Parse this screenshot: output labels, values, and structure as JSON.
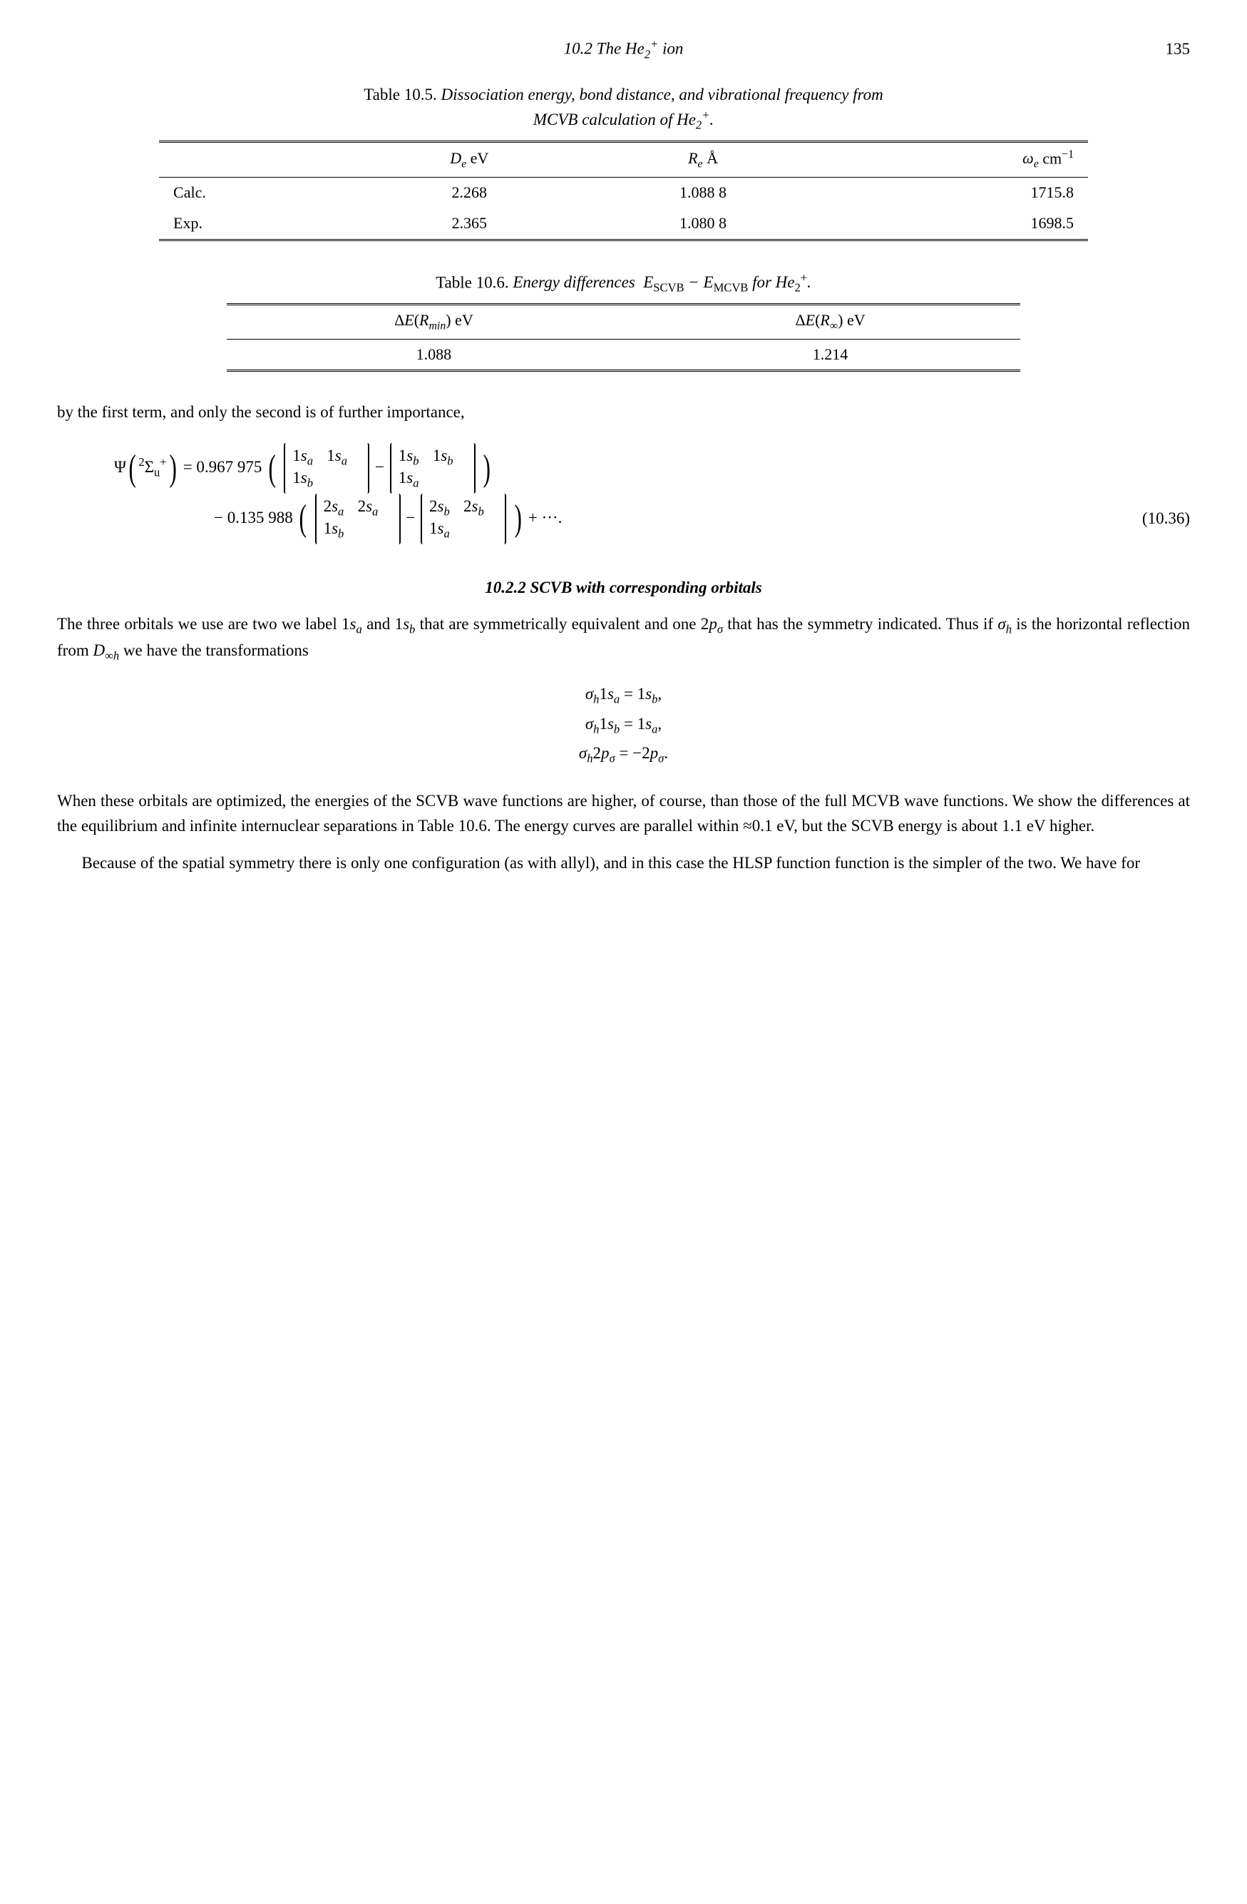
{
  "header": {
    "running_title": "10.2 The He₂⁺ ion",
    "page_number": "135"
  },
  "table1": {
    "caption_label": "Table 10.5.",
    "caption_desc": "Dissociation energy, bond distance, and vibrational frequency from MCVB calculation of He₂⁺.",
    "headers": [
      "",
      "Dₑ eV",
      "Rₑ Å",
      "ωₑ cm⁻¹"
    ],
    "rows": [
      [
        "Calc.",
        "2.268",
        "1.088 8",
        "1715.8"
      ],
      [
        "Exp.",
        "2.365",
        "1.080 8",
        "1698.5"
      ]
    ]
  },
  "table2": {
    "caption_label": "Table 10.6.",
    "caption_desc_pre": "Energy differences ",
    "caption_desc_mid": "E",
    "caption_desc_sub1": "SCVB",
    "caption_desc_minus": " − ",
    "caption_desc_mid2": "E",
    "caption_desc_sub2": "MCVB",
    "caption_desc_post": " for He₂⁺.",
    "headers": [
      "ΔE(Rₘᵢₙ) eV",
      "ΔE(R∞) eV"
    ],
    "rows": [
      [
        "1.088",
        "1.214"
      ]
    ]
  },
  "para1": "by the first term, and only the second is of further importance,",
  "equation": {
    "lhs": "Ψ(²Σᵤ⁺) = 0.967 975 ",
    "m1": {
      "r1c1": "1sₐ",
      "r1c2": "1sₐ",
      "r2c1": "1s_b",
      "r2c2": ""
    },
    "m2": {
      "r1c1": "1s_b",
      "r1c2": "1s_b",
      "r2c1": "1sₐ",
      "r2c2": ""
    },
    "line2_pre": "− 0.135 988 ",
    "m3": {
      "r1c1": "2sₐ",
      "r1c2": "2sₐ",
      "r2c1": "1s_b",
      "r2c2": ""
    },
    "m4": {
      "r1c1": "2s_b",
      "r1c2": "2s_b",
      "r2c1": "1sₐ",
      "r2c2": ""
    },
    "trail": " + ···.",
    "number": "(10.36)"
  },
  "subsection": "10.2.2  SCVB with corresponding orbitals",
  "para2_a": "The three orbitals we use are two we label 1",
  "para2_b": " and 1",
  "para2_c": " that are symmetrically equivalent and one 2",
  "para2_d": " that has the symmetry indicated. Thus if ",
  "para2_e": " is the horizontal reflection from ",
  "para2_f": " we have the transformations",
  "align": {
    "l1": "σₕ1sₐ = 1s_b,",
    "l2": "σₕ1s_b = 1sₐ,",
    "l3": "σₕ2pσ = −2pσ."
  },
  "para3": "When these orbitals are optimized, the energies of the SCVB wave functions are higher, of course, than those of the full MCVB wave functions. We show the differences at the equilibrium and infinite internuclear separations in Table 10.6. The energy curves are parallel within ≈0.1 eV, but the SCVB energy is about 1.1 eV higher.",
  "para4": "Because of the spatial symmetry there is only one configuration (as with allyl), and in this case the HLSP function function is the simpler of the two. We have for"
}
